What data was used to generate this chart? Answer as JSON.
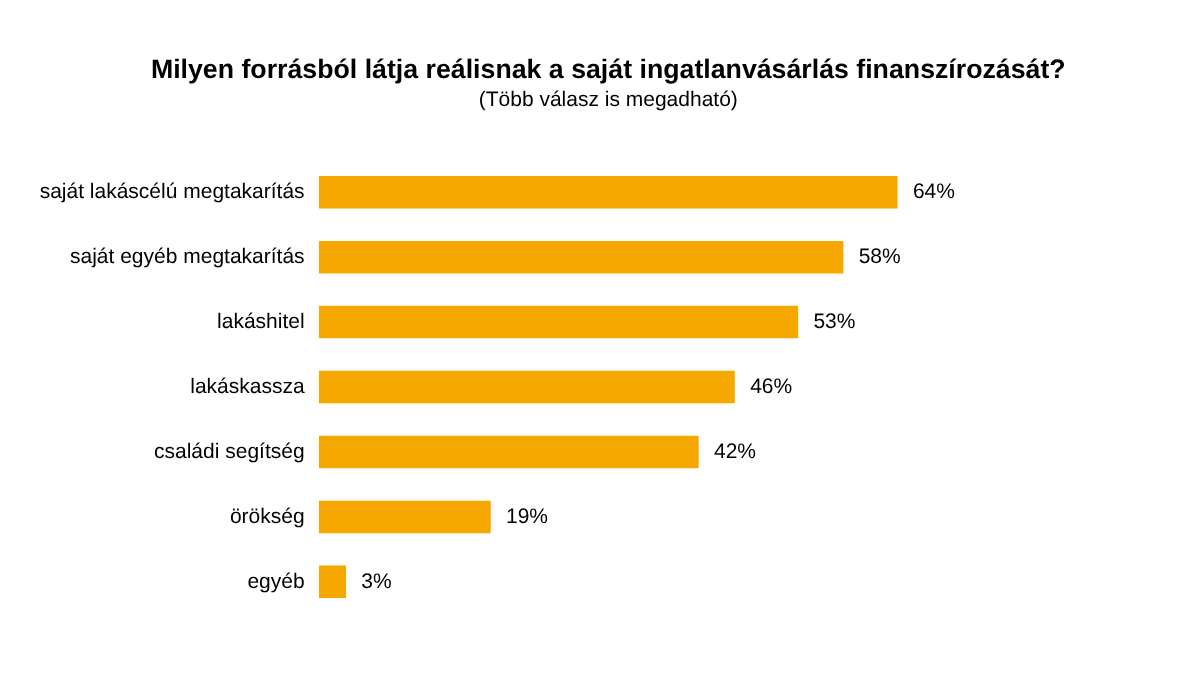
{
  "chart_data": {
    "type": "bar",
    "orientation": "horizontal",
    "title": "Milyen forrásból látja reálisnak a saját  ingatlanvásárlás finanszírozását?",
    "subtitle": "(Több válasz is megadható)",
    "categories": [
      "saját lakáscélú megtakarítás",
      "saját egyéb megtakarítás",
      "lakáshitel",
      "lakáskassza",
      "családi segítség",
      "örökség",
      "egyéb"
    ],
    "values": [
      64,
      58,
      53,
      46,
      42,
      19,
      3
    ],
    "value_labels": [
      "64%",
      "58%",
      "53%",
      "46%",
      "42%",
      "19%",
      "3%"
    ],
    "color": "#f5a800",
    "grid": false
  }
}
